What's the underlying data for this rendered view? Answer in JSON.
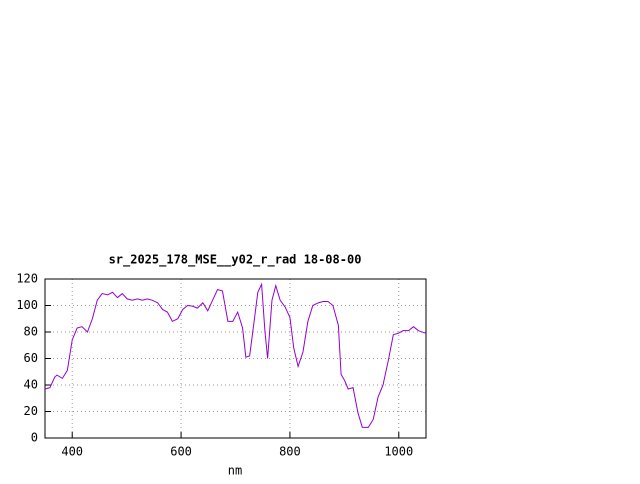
{
  "chart_data": {
    "type": "line",
    "title": "sr_2025_178_MSE__y02_r_rad 18-08-00",
    "xlabel": "nm",
    "x": [
      350,
      359,
      368,
      372,
      382,
      391,
      400,
      409,
      418,
      428,
      437,
      446,
      455,
      465,
      474,
      483,
      492,
      501,
      510,
      520,
      529,
      538,
      547,
      557,
      566,
      575,
      584,
      594,
      603,
      612,
      621,
      630,
      640,
      649,
      658,
      667,
      676,
      686,
      695,
      704,
      713,
      719,
      726,
      732,
      741,
      748,
      754,
      759,
      767,
      774,
      782,
      791,
      800,
      807,
      815,
      824,
      833,
      842,
      852,
      861,
      870,
      879,
      889,
      894,
      901,
      907,
      916,
      925,
      933,
      944,
      953,
      962,
      971,
      981,
      990,
      999,
      1008,
      1018,
      1027,
      1036,
      1050
    ],
    "series": [
      {
        "color": "#9400d3",
        "values": [
          37,
          38,
          46,
          47.5,
          45,
          51,
          74,
          83,
          84,
          80,
          90,
          104,
          109,
          108,
          110,
          106,
          109,
          105,
          104,
          105,
          104,
          105,
          104,
          102,
          97,
          95,
          88,
          90,
          97,
          100,
          99.5,
          98,
          102,
          96,
          104,
          112,
          111,
          88,
          88,
          95,
          83,
          61,
          62,
          81,
          110,
          116,
          81,
          60,
          104,
          115,
          104,
          99,
          91,
          68,
          54,
          65,
          88,
          100,
          102,
          103,
          103,
          100,
          85,
          48,
          43,
          37,
          38,
          19,
          8,
          8,
          14,
          31,
          40,
          59,
          78,
          79,
          81,
          81,
          84,
          81,
          79
        ]
      }
    ],
    "xlim": [
      350,
      1050
    ],
    "ylim": [
      0,
      120
    ],
    "xticks": [
      400,
      600,
      800,
      1000
    ],
    "yticks": [
      0,
      20,
      40,
      60,
      80,
      100,
      120
    ],
    "grid": true
  }
}
